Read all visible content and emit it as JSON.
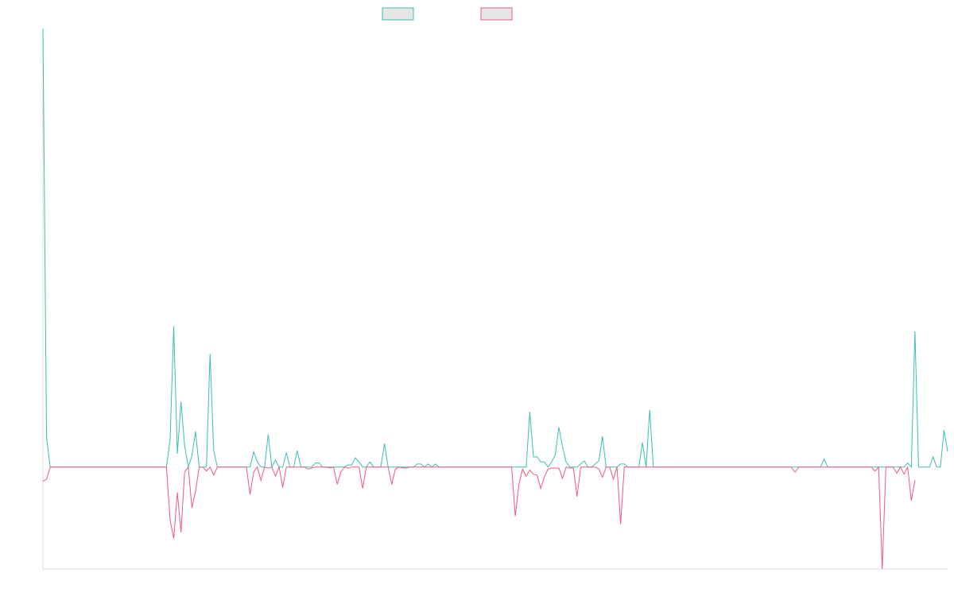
{
  "chart_data": {
    "type": "line",
    "title": "",
    "xlabel": "",
    "ylabel": "",
    "ylim": [
      -1.0,
      4.3
    ],
    "grid": false,
    "legend_position": "top-center",
    "series": [
      {
        "name": "",
        "color": "#3dbdb5",
        "values": [
          4.3,
          0.29,
          0,
          0,
          0,
          0,
          0,
          0,
          0,
          0,
          0,
          0,
          0,
          0,
          0,
          0,
          0,
          0,
          0,
          0,
          0,
          0,
          0,
          0,
          0,
          0,
          0,
          0,
          0,
          0,
          0,
          0,
          0,
          0,
          0,
          0.27,
          1.38,
          0.13,
          0.64,
          0.21,
          0,
          0.11,
          0.35,
          0,
          0,
          0,
          1.11,
          0.16,
          0,
          0,
          0,
          0,
          0,
          0,
          0,
          0,
          0,
          0,
          0.15,
          0.05,
          0,
          0,
          0.32,
          0,
          0.07,
          0,
          0,
          0.14,
          0,
          0,
          0.16,
          0,
          0,
          0,
          0,
          0.04,
          0.04,
          0,
          0,
          0,
          0,
          0,
          0,
          0,
          0.02,
          0.02,
          0.09,
          0.05,
          0,
          0,
          0.05,
          0,
          0,
          0,
          0.23,
          0,
          0,
          0,
          0,
          0,
          0,
          0,
          0,
          0.03,
          0.03,
          0,
          0.03,
          0,
          0.03,
          0,
          0,
          0,
          0,
          0,
          0,
          0,
          0,
          0,
          0,
          0,
          0,
          0,
          0,
          0,
          0,
          0,
          0,
          0,
          0,
          0,
          0,
          0,
          0,
          0,
          0.54,
          0.1,
          0.1,
          0.05,
          0.05,
          0,
          0.05,
          0.12,
          0.39,
          0.2,
          0.05,
          0,
          0,
          0,
          0.03,
          0.06,
          0,
          0,
          0.03,
          0.06,
          0.3,
          0,
          0,
          0,
          0,
          0.03,
          0.03,
          0,
          0,
          0,
          0,
          0.24,
          0,
          0.56,
          0,
          0,
          0,
          0,
          0,
          0,
          0,
          0,
          0,
          0,
          0,
          0,
          0,
          0,
          0,
          0,
          0,
          0,
          0,
          0,
          0,
          0,
          0,
          0,
          0,
          0,
          0,
          0,
          0,
          0,
          0,
          0,
          0,
          0,
          0,
          0,
          0,
          0,
          0,
          0,
          0,
          0,
          0,
          0,
          0,
          0,
          0,
          0.08,
          0,
          0,
          0,
          0,
          0,
          0,
          0,
          0,
          0,
          0,
          0,
          0,
          0,
          0,
          0,
          0,
          0,
          0,
          0,
          0,
          0,
          0,
          0.04,
          0,
          1.33,
          0,
          0,
          0,
          0,
          0.1,
          0,
          0,
          0.36,
          0.15
        ]
      },
      {
        "name": "",
        "color": "#f0587e",
        "values": [
          -0.14,
          -0.12,
          0,
          0,
          0,
          0,
          0,
          0,
          0,
          0,
          0,
          0,
          0,
          0,
          0,
          0,
          0,
          0,
          0,
          0,
          0,
          0,
          0,
          0,
          0,
          0,
          0,
          0,
          0,
          0,
          0,
          0,
          0,
          0,
          0,
          -0.52,
          -0.7,
          -0.25,
          -0.64,
          -0.05,
          0,
          -0.4,
          -0.24,
          0,
          0,
          -0.04,
          0,
          -0.08,
          0,
          0,
          0,
          0,
          0,
          0,
          0,
          0,
          0,
          -0.27,
          -0.05,
          0,
          -0.13,
          0,
          -0.01,
          0,
          -0.09,
          0,
          -0.2,
          0,
          0,
          0,
          0,
          0,
          0,
          -0.02,
          -0.01,
          0,
          0,
          0,
          0,
          -0.01,
          0,
          -0.17,
          -0.05,
          0,
          -0.01,
          0,
          0,
          0,
          -0.21,
          0,
          0,
          0,
          0,
          0,
          0,
          0,
          -0.17,
          -0.02,
          0,
          -0.01,
          -0.01,
          0,
          0,
          0,
          0,
          0,
          0,
          0,
          0,
          0,
          0,
          0,
          0,
          0,
          0,
          0,
          0,
          0,
          0,
          0,
          0,
          0,
          0,
          0,
          0,
          0,
          0,
          0,
          0,
          0,
          -0.48,
          -0.17,
          -0.02,
          -0.09,
          -0.03,
          -0.07,
          -0.08,
          -0.21,
          -0.1,
          -0.02,
          -0.01,
          -0.01,
          -0.01,
          -0.11,
          0,
          -0.01,
          -0.01,
          -0.29,
          0,
          0,
          0,
          0,
          0,
          -0.02,
          -0.1,
          0,
          0,
          -0.12,
          0,
          -0.56,
          0,
          0,
          0,
          0,
          0,
          0,
          0,
          0,
          0,
          0,
          0,
          0,
          0,
          0,
          0,
          0,
          0,
          0,
          0,
          0,
          0,
          0,
          0,
          0,
          0,
          0,
          0,
          0,
          0,
          0,
          0,
          0,
          0,
          0,
          0,
          0,
          0,
          0,
          0,
          0,
          0,
          0,
          0,
          0,
          0,
          0,
          0,
          -0.05,
          0,
          0,
          0,
          0,
          0,
          0,
          0,
          0,
          0,
          0,
          0,
          0,
          0,
          0,
          0,
          0,
          0,
          0,
          0,
          0,
          0,
          -0.04,
          0,
          -1.0,
          0,
          0,
          0,
          -0.06,
          0,
          -0.07,
          0,
          -0.33,
          -0.13
        ]
      }
    ]
  }
}
